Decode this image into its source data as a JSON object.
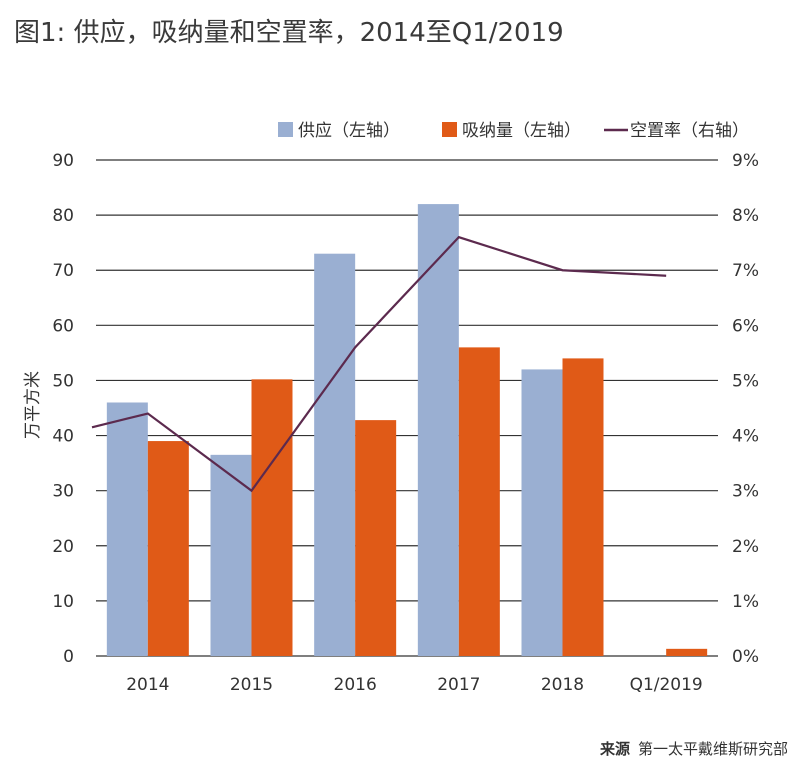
{
  "title": "图1: 供应，吸纳量和空置率，2014至Q1/2019",
  "source": {
    "label": "来源",
    "text": "第一太平戴维斯研究部"
  },
  "chart_data": {
    "type": "bar",
    "categories": [
      "2014",
      "2015",
      "2016",
      "2017",
      "2018",
      "Q1/2019"
    ],
    "series": [
      {
        "name": "供应（左轴）",
        "type": "bar",
        "axis": "left",
        "color": "#9aafd2",
        "values": [
          46,
          36.5,
          73,
          82,
          52,
          null
        ]
      },
      {
        "name": "吸纳量（左轴）",
        "type": "bar",
        "axis": "left",
        "color": "#e05a17",
        "values": [
          39,
          50.2,
          42.8,
          56,
          54,
          1.3
        ]
      },
      {
        "name": "空置率（右轴）",
        "type": "line",
        "axis": "right",
        "color": "#5c2a4e",
        "values": [
          4.4,
          3.0,
          5.6,
          7.6,
          7.0,
          6.9
        ],
        "start_value": 4.15
      }
    ],
    "ylabel": "万平方米",
    "ylim": [
      0,
      90
    ],
    "yticks": [
      "0",
      "10",
      "20",
      "30",
      "40",
      "50",
      "60",
      "70",
      "80",
      "90"
    ],
    "y2lim": [
      0,
      9
    ],
    "y2ticks": [
      "0%",
      "1%",
      "2%",
      "3%",
      "4%",
      "5%",
      "6%",
      "7%",
      "8%",
      "9%"
    ],
    "grid": true,
    "legend_position": "top-right"
  }
}
